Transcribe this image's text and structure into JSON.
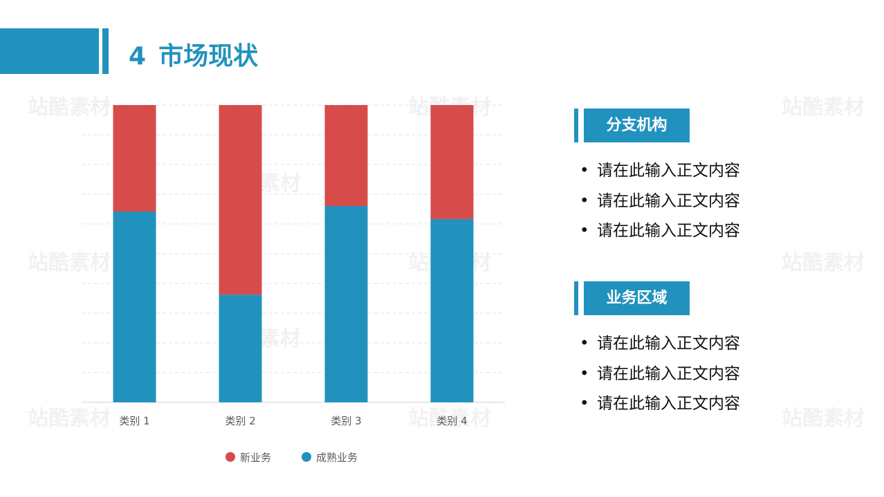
{
  "header": {
    "number": "4",
    "title": "市场现状"
  },
  "watermark": "站酷素材",
  "colors": {
    "accent": "#2192BE",
    "red": "#D84B4B",
    "grid": "#D9D9D9"
  },
  "chart_data": {
    "type": "bar",
    "stacked": "percent",
    "categories": [
      "类别 1",
      "类别 2",
      "类别 3",
      "类别 4"
    ],
    "series": [
      {
        "name": "新业务",
        "color": "#D84B4B",
        "values": [
          2.4,
          4.4,
          1.8,
          2.8
        ]
      },
      {
        "name": "成熟业务",
        "color": "#2192BE",
        "values": [
          4.3,
          2.5,
          3.5,
          4.5
        ]
      }
    ],
    "ylim": [
      0,
      100
    ],
    "grid": true,
    "legend": "bottom"
  },
  "sections": [
    {
      "label": "分支机构",
      "items": [
        "请在此输入正文内容",
        "请在此输入正文内容",
        "请在此输入正文内容"
      ]
    },
    {
      "label": "业务区域",
      "items": [
        "请在此输入正文内容",
        "请在此输入正文内容",
        "请在此输入正文内容"
      ]
    }
  ],
  "bullet_char": "•"
}
